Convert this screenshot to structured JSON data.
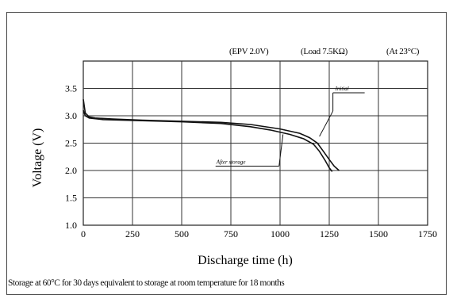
{
  "conditions": {
    "epv": "(EPV 2.0V)",
    "load": "(Load 7.5KΩ)",
    "temp": "(At 23°C)"
  },
  "footnote": "Storage at 60°C for 30 days equivalent to storage at room temperature for 18 months",
  "chart_data": {
    "type": "line",
    "title": "",
    "xlabel": "Discharge time (h)",
    "ylabel": "Voltage (V)",
    "xlim": [
      0,
      1750
    ],
    "ylim": [
      1.0,
      3.5
    ],
    "ylim_drawn": [
      1.0,
      4.0
    ],
    "xticks": [
      0,
      250,
      500,
      750,
      1000,
      1250,
      1500,
      1750
    ],
    "yticks": [
      1.0,
      1.5,
      2.0,
      2.5,
      3.0,
      3.5
    ],
    "grid": true,
    "series": [
      {
        "name": "Initial",
        "color": "#111111",
        "x": [
          0,
          10,
          30,
          60,
          150,
          300,
          500,
          700,
          850,
          1000,
          1100,
          1150,
          1190,
          1220,
          1250,
          1275,
          1300
        ],
        "y": [
          3.3,
          3.05,
          2.98,
          2.96,
          2.94,
          2.92,
          2.9,
          2.88,
          2.84,
          2.76,
          2.68,
          2.6,
          2.5,
          2.35,
          2.2,
          2.08,
          2.0
        ]
      },
      {
        "name": "After storage",
        "color": "#111111",
        "x": [
          0,
          10,
          30,
          100,
          300,
          500,
          700,
          850,
          950,
          1050,
          1120,
          1170,
          1200,
          1230,
          1250,
          1265
        ],
        "y": [
          3.1,
          3.0,
          2.96,
          2.93,
          2.91,
          2.89,
          2.86,
          2.8,
          2.74,
          2.66,
          2.58,
          2.48,
          2.35,
          2.18,
          2.05,
          1.98
        ]
      }
    ]
  }
}
